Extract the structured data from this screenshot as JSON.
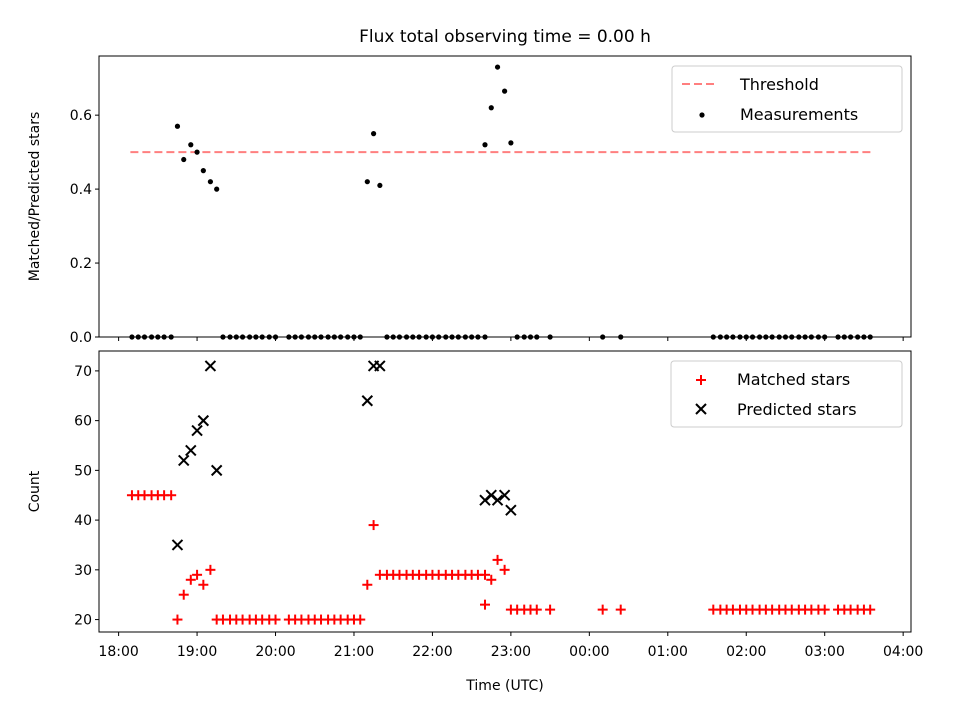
{
  "title": "Flux total observing time = 0.00 h",
  "x_axis": {
    "label": "Time (UTC)",
    "range_hours": [
      17.75,
      28.1
    ],
    "ticks": [
      {
        "h": 18,
        "label": "18:00"
      },
      {
        "h": 19,
        "label": "19:00"
      },
      {
        "h": 20,
        "label": "20:00"
      },
      {
        "h": 21,
        "label": "21:00"
      },
      {
        "h": 22,
        "label": "22:00"
      },
      {
        "h": 23,
        "label": "23:00"
      },
      {
        "h": 24,
        "label": "00:00"
      },
      {
        "h": 25,
        "label": "01:00"
      },
      {
        "h": 26,
        "label": "02:00"
      },
      {
        "h": 27,
        "label": "03:00"
      },
      {
        "h": 28,
        "label": "04:00"
      }
    ]
  },
  "chart_data": [
    {
      "type": "scatter",
      "ylabel": "Matched/Predicted stars",
      "ylim": [
        0,
        0.76
      ],
      "yticks": [
        {
          "v": 0.0,
          "label": "0.0"
        },
        {
          "v": 0.2,
          "label": "0.2"
        },
        {
          "v": 0.4,
          "label": "0.4"
        },
        {
          "v": 0.6,
          "label": "0.6"
        }
      ],
      "legend": {
        "position": "upper right",
        "entries": [
          {
            "label": "Threshold",
            "marker": "dashed-line",
            "color": "#ff7f7f"
          },
          {
            "label": "Measurements",
            "marker": "dot",
            "color": "#000000"
          }
        ]
      },
      "threshold": {
        "value": 0.5,
        "x_range": [
          18.15,
          27.6
        ],
        "color": "#ff7f7f"
      },
      "measurements": [
        [
          18.17,
          0
        ],
        [
          18.25,
          0
        ],
        [
          18.33,
          0
        ],
        [
          18.42,
          0
        ],
        [
          18.5,
          0
        ],
        [
          18.58,
          0
        ],
        [
          18.67,
          0
        ],
        [
          18.75,
          0.57
        ],
        [
          18.83,
          0.48
        ],
        [
          18.92,
          0.52
        ],
        [
          19.0,
          0.5
        ],
        [
          19.08,
          0.45
        ],
        [
          19.17,
          0.42
        ],
        [
          19.25,
          0.4
        ],
        [
          19.33,
          0
        ],
        [
          19.42,
          0
        ],
        [
          19.5,
          0
        ],
        [
          19.58,
          0
        ],
        [
          19.67,
          0
        ],
        [
          19.75,
          0
        ],
        [
          19.83,
          0
        ],
        [
          19.92,
          0
        ],
        [
          20.0,
          0
        ],
        [
          20.17,
          0
        ],
        [
          20.25,
          0
        ],
        [
          20.33,
          0
        ],
        [
          20.42,
          0
        ],
        [
          20.5,
          0
        ],
        [
          20.58,
          0
        ],
        [
          20.67,
          0
        ],
        [
          20.75,
          0
        ],
        [
          20.83,
          0
        ],
        [
          20.92,
          0
        ],
        [
          21.0,
          0
        ],
        [
          21.08,
          0
        ],
        [
          21.17,
          0.42
        ],
        [
          21.25,
          0.55
        ],
        [
          21.33,
          0.41
        ],
        [
          21.42,
          0
        ],
        [
          21.5,
          0
        ],
        [
          21.58,
          0
        ],
        [
          21.67,
          0
        ],
        [
          21.75,
          0
        ],
        [
          21.83,
          0
        ],
        [
          21.92,
          0
        ],
        [
          22.0,
          0
        ],
        [
          22.08,
          0
        ],
        [
          22.17,
          0
        ],
        [
          22.25,
          0
        ],
        [
          22.33,
          0
        ],
        [
          22.42,
          0
        ],
        [
          22.5,
          0
        ],
        [
          22.58,
          0
        ],
        [
          22.67,
          0
        ],
        [
          22.67,
          0.52
        ],
        [
          22.75,
          0.62
        ],
        [
          22.83,
          0.73
        ],
        [
          22.92,
          0.665
        ],
        [
          23.0,
          0.525
        ],
        [
          23.08,
          0
        ],
        [
          23.17,
          0
        ],
        [
          23.25,
          0
        ],
        [
          23.33,
          0
        ],
        [
          23.5,
          0
        ],
        [
          24.17,
          0
        ],
        [
          24.4,
          0
        ],
        [
          25.58,
          0
        ],
        [
          25.67,
          0
        ],
        [
          25.75,
          0
        ],
        [
          25.83,
          0
        ],
        [
          25.92,
          0
        ],
        [
          26.0,
          0
        ],
        [
          26.08,
          0
        ],
        [
          26.17,
          0
        ],
        [
          26.25,
          0
        ],
        [
          26.33,
          0
        ],
        [
          26.42,
          0
        ],
        [
          26.5,
          0
        ],
        [
          26.58,
          0
        ],
        [
          26.67,
          0
        ],
        [
          26.75,
          0
        ],
        [
          26.83,
          0
        ],
        [
          26.92,
          0
        ],
        [
          27.0,
          0
        ],
        [
          27.17,
          0
        ],
        [
          27.25,
          0
        ],
        [
          27.33,
          0
        ],
        [
          27.42,
          0
        ],
        [
          27.5,
          0
        ],
        [
          27.58,
          0
        ]
      ]
    },
    {
      "type": "scatter",
      "ylabel": "Count",
      "ylim": [
        17.5,
        74
      ],
      "yticks": [
        {
          "v": 20,
          "label": "20"
        },
        {
          "v": 30,
          "label": "30"
        },
        {
          "v": 40,
          "label": "40"
        },
        {
          "v": 50,
          "label": "50"
        },
        {
          "v": 60,
          "label": "60"
        },
        {
          "v": 70,
          "label": "70"
        }
      ],
      "legend": {
        "position": "upper right",
        "entries": [
          {
            "label": "Matched stars",
            "marker": "plus",
            "color": "#ff0000"
          },
          {
            "label": "Predicted stars",
            "marker": "x",
            "color": "#000000"
          }
        ]
      },
      "series": [
        {
          "name": "Matched stars",
          "marker": "plus",
          "color": "#ff0000",
          "points": [
            [
              18.17,
              45
            ],
            [
              18.25,
              45
            ],
            [
              18.33,
              45
            ],
            [
              18.42,
              45
            ],
            [
              18.5,
              45
            ],
            [
              18.58,
              45
            ],
            [
              18.67,
              45
            ],
            [
              18.75,
              20
            ],
            [
              18.83,
              25
            ],
            [
              18.92,
              28
            ],
            [
              19.0,
              29
            ],
            [
              19.08,
              27
            ],
            [
              19.17,
              30
            ],
            [
              19.25,
              20
            ],
            [
              19.33,
              20
            ],
            [
              19.42,
              20
            ],
            [
              19.5,
              20
            ],
            [
              19.58,
              20
            ],
            [
              19.67,
              20
            ],
            [
              19.75,
              20
            ],
            [
              19.83,
              20
            ],
            [
              19.92,
              20
            ],
            [
              20.0,
              20
            ],
            [
              20.17,
              20
            ],
            [
              20.25,
              20
            ],
            [
              20.33,
              20
            ],
            [
              20.42,
              20
            ],
            [
              20.5,
              20
            ],
            [
              20.58,
              20
            ],
            [
              20.67,
              20
            ],
            [
              20.75,
              20
            ],
            [
              20.83,
              20
            ],
            [
              20.92,
              20
            ],
            [
              21.0,
              20
            ],
            [
              21.08,
              20
            ],
            [
              21.17,
              27
            ],
            [
              21.25,
              39
            ],
            [
              21.33,
              29
            ],
            [
              21.42,
              29
            ],
            [
              21.5,
              29
            ],
            [
              21.58,
              29
            ],
            [
              21.67,
              29
            ],
            [
              21.75,
              29
            ],
            [
              21.83,
              29
            ],
            [
              21.92,
              29
            ],
            [
              22.0,
              29
            ],
            [
              22.08,
              29
            ],
            [
              22.17,
              29
            ],
            [
              22.25,
              29
            ],
            [
              22.33,
              29
            ],
            [
              22.42,
              29
            ],
            [
              22.5,
              29
            ],
            [
              22.58,
              29
            ],
            [
              22.67,
              29
            ],
            [
              22.67,
              23
            ],
            [
              22.75,
              28
            ],
            [
              22.83,
              32
            ],
            [
              22.92,
              30
            ],
            [
              23.0,
              22
            ],
            [
              23.08,
              22
            ],
            [
              23.17,
              22
            ],
            [
              23.25,
              22
            ],
            [
              23.33,
              22
            ],
            [
              23.5,
              22
            ],
            [
              24.17,
              22
            ],
            [
              24.4,
              22
            ],
            [
              25.58,
              22
            ],
            [
              25.67,
              22
            ],
            [
              25.75,
              22
            ],
            [
              25.83,
              22
            ],
            [
              25.92,
              22
            ],
            [
              26.0,
              22
            ],
            [
              26.08,
              22
            ],
            [
              26.17,
              22
            ],
            [
              26.25,
              22
            ],
            [
              26.33,
              22
            ],
            [
              26.42,
              22
            ],
            [
              26.5,
              22
            ],
            [
              26.58,
              22
            ],
            [
              26.67,
              22
            ],
            [
              26.75,
              22
            ],
            [
              26.83,
              22
            ],
            [
              26.92,
              22
            ],
            [
              27.0,
              22
            ],
            [
              27.17,
              22
            ],
            [
              27.25,
              22
            ],
            [
              27.33,
              22
            ],
            [
              27.42,
              22
            ],
            [
              27.5,
              22
            ],
            [
              27.58,
              22
            ]
          ]
        },
        {
          "name": "Predicted stars",
          "marker": "x",
          "color": "#000000",
          "points": [
            [
              18.75,
              35
            ],
            [
              18.83,
              52
            ],
            [
              18.92,
              54
            ],
            [
              19.0,
              58
            ],
            [
              19.08,
              60
            ],
            [
              19.17,
              71
            ],
            [
              19.25,
              50
            ],
            [
              21.17,
              64
            ],
            [
              21.25,
              71
            ],
            [
              21.33,
              71
            ],
            [
              22.67,
              44
            ],
            [
              22.75,
              45
            ],
            [
              22.83,
              44
            ],
            [
              22.92,
              45
            ],
            [
              23.0,
              42
            ]
          ]
        }
      ]
    }
  ]
}
